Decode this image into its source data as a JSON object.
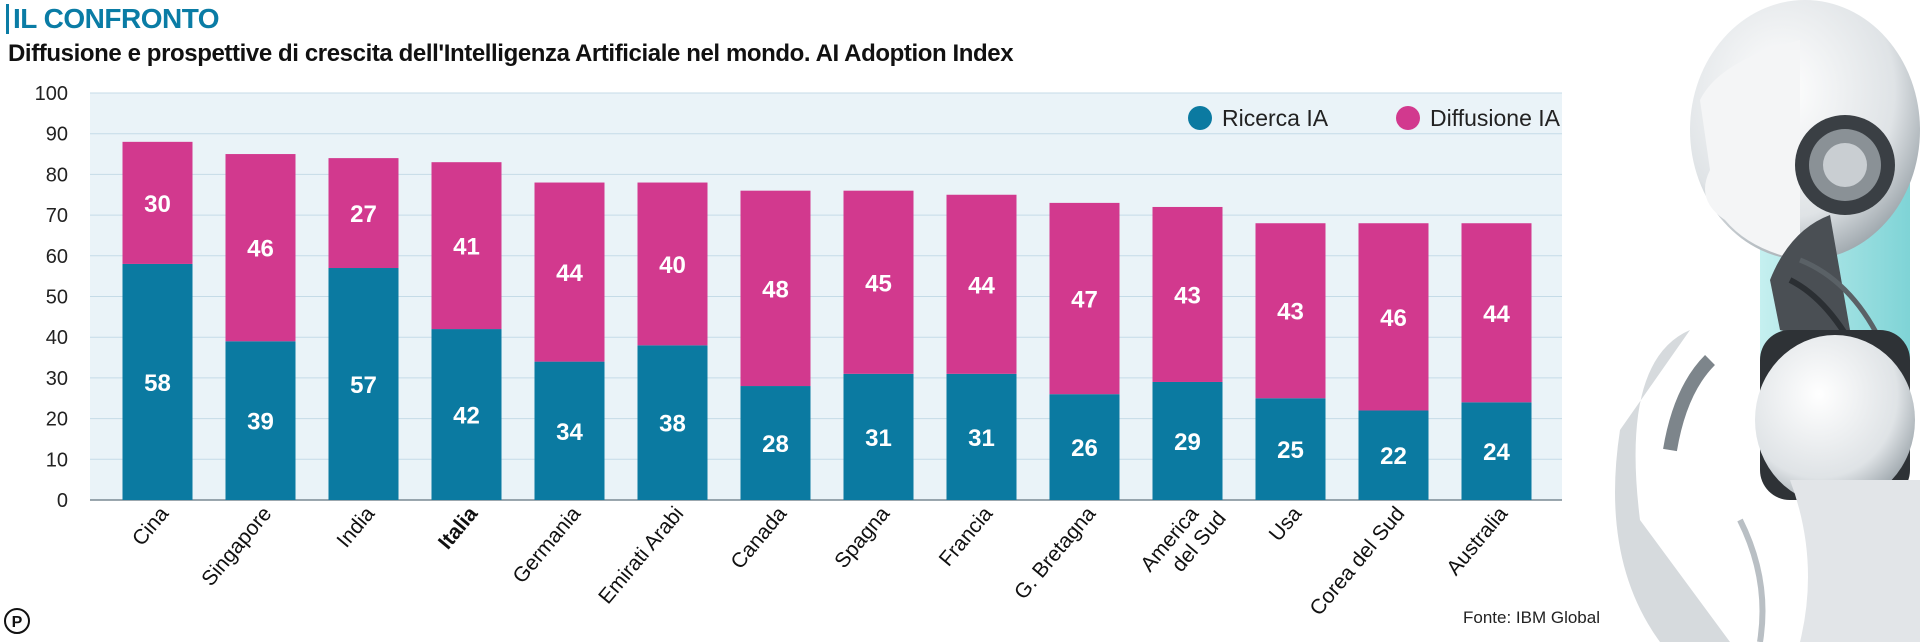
{
  "kicker": "IL CONFRONTO",
  "title": "Diffusione e prospettive di crescita dell'Intelligenza Artificiale nel mondo. AI Adoption Index",
  "source": "Fonte: IBM Global",
  "colors": {
    "ricerca": "#0b7aa1",
    "diffusione": "#d2398e",
    "plot_bg": "#eaf3f8",
    "grid": "#c5dbe7"
  },
  "chart_data": {
    "type": "bar",
    "stacked": true,
    "title": "Diffusione e prospettive di crescita dell'Intelligenza Artificiale nel mondo. AI Adoption Index",
    "xlabel": "",
    "ylabel": "",
    "ylim": [
      0,
      100
    ],
    "yticks": [
      0,
      10,
      20,
      30,
      40,
      50,
      60,
      70,
      80,
      90,
      100
    ],
    "legend_position": "top-right",
    "highlight_category": "Italia",
    "categories": [
      "Cina",
      "Singapore",
      "India",
      "Italia",
      "Germania",
      "Emirati Arabi",
      "Canada",
      "Spagna",
      "Francia",
      "G. Bretagna",
      "America del Sud",
      "Usa",
      "Corea del Sud",
      "Australia"
    ],
    "series": [
      {
        "name": "Ricerca IA",
        "values": [
          58,
          39,
          57,
          42,
          34,
          38,
          28,
          31,
          31,
          26,
          29,
          25,
          22,
          24
        ]
      },
      {
        "name": "Diffusione IA",
        "values": [
          30,
          46,
          27,
          41,
          44,
          40,
          48,
          45,
          44,
          47,
          43,
          43,
          46,
          44
        ]
      }
    ]
  }
}
